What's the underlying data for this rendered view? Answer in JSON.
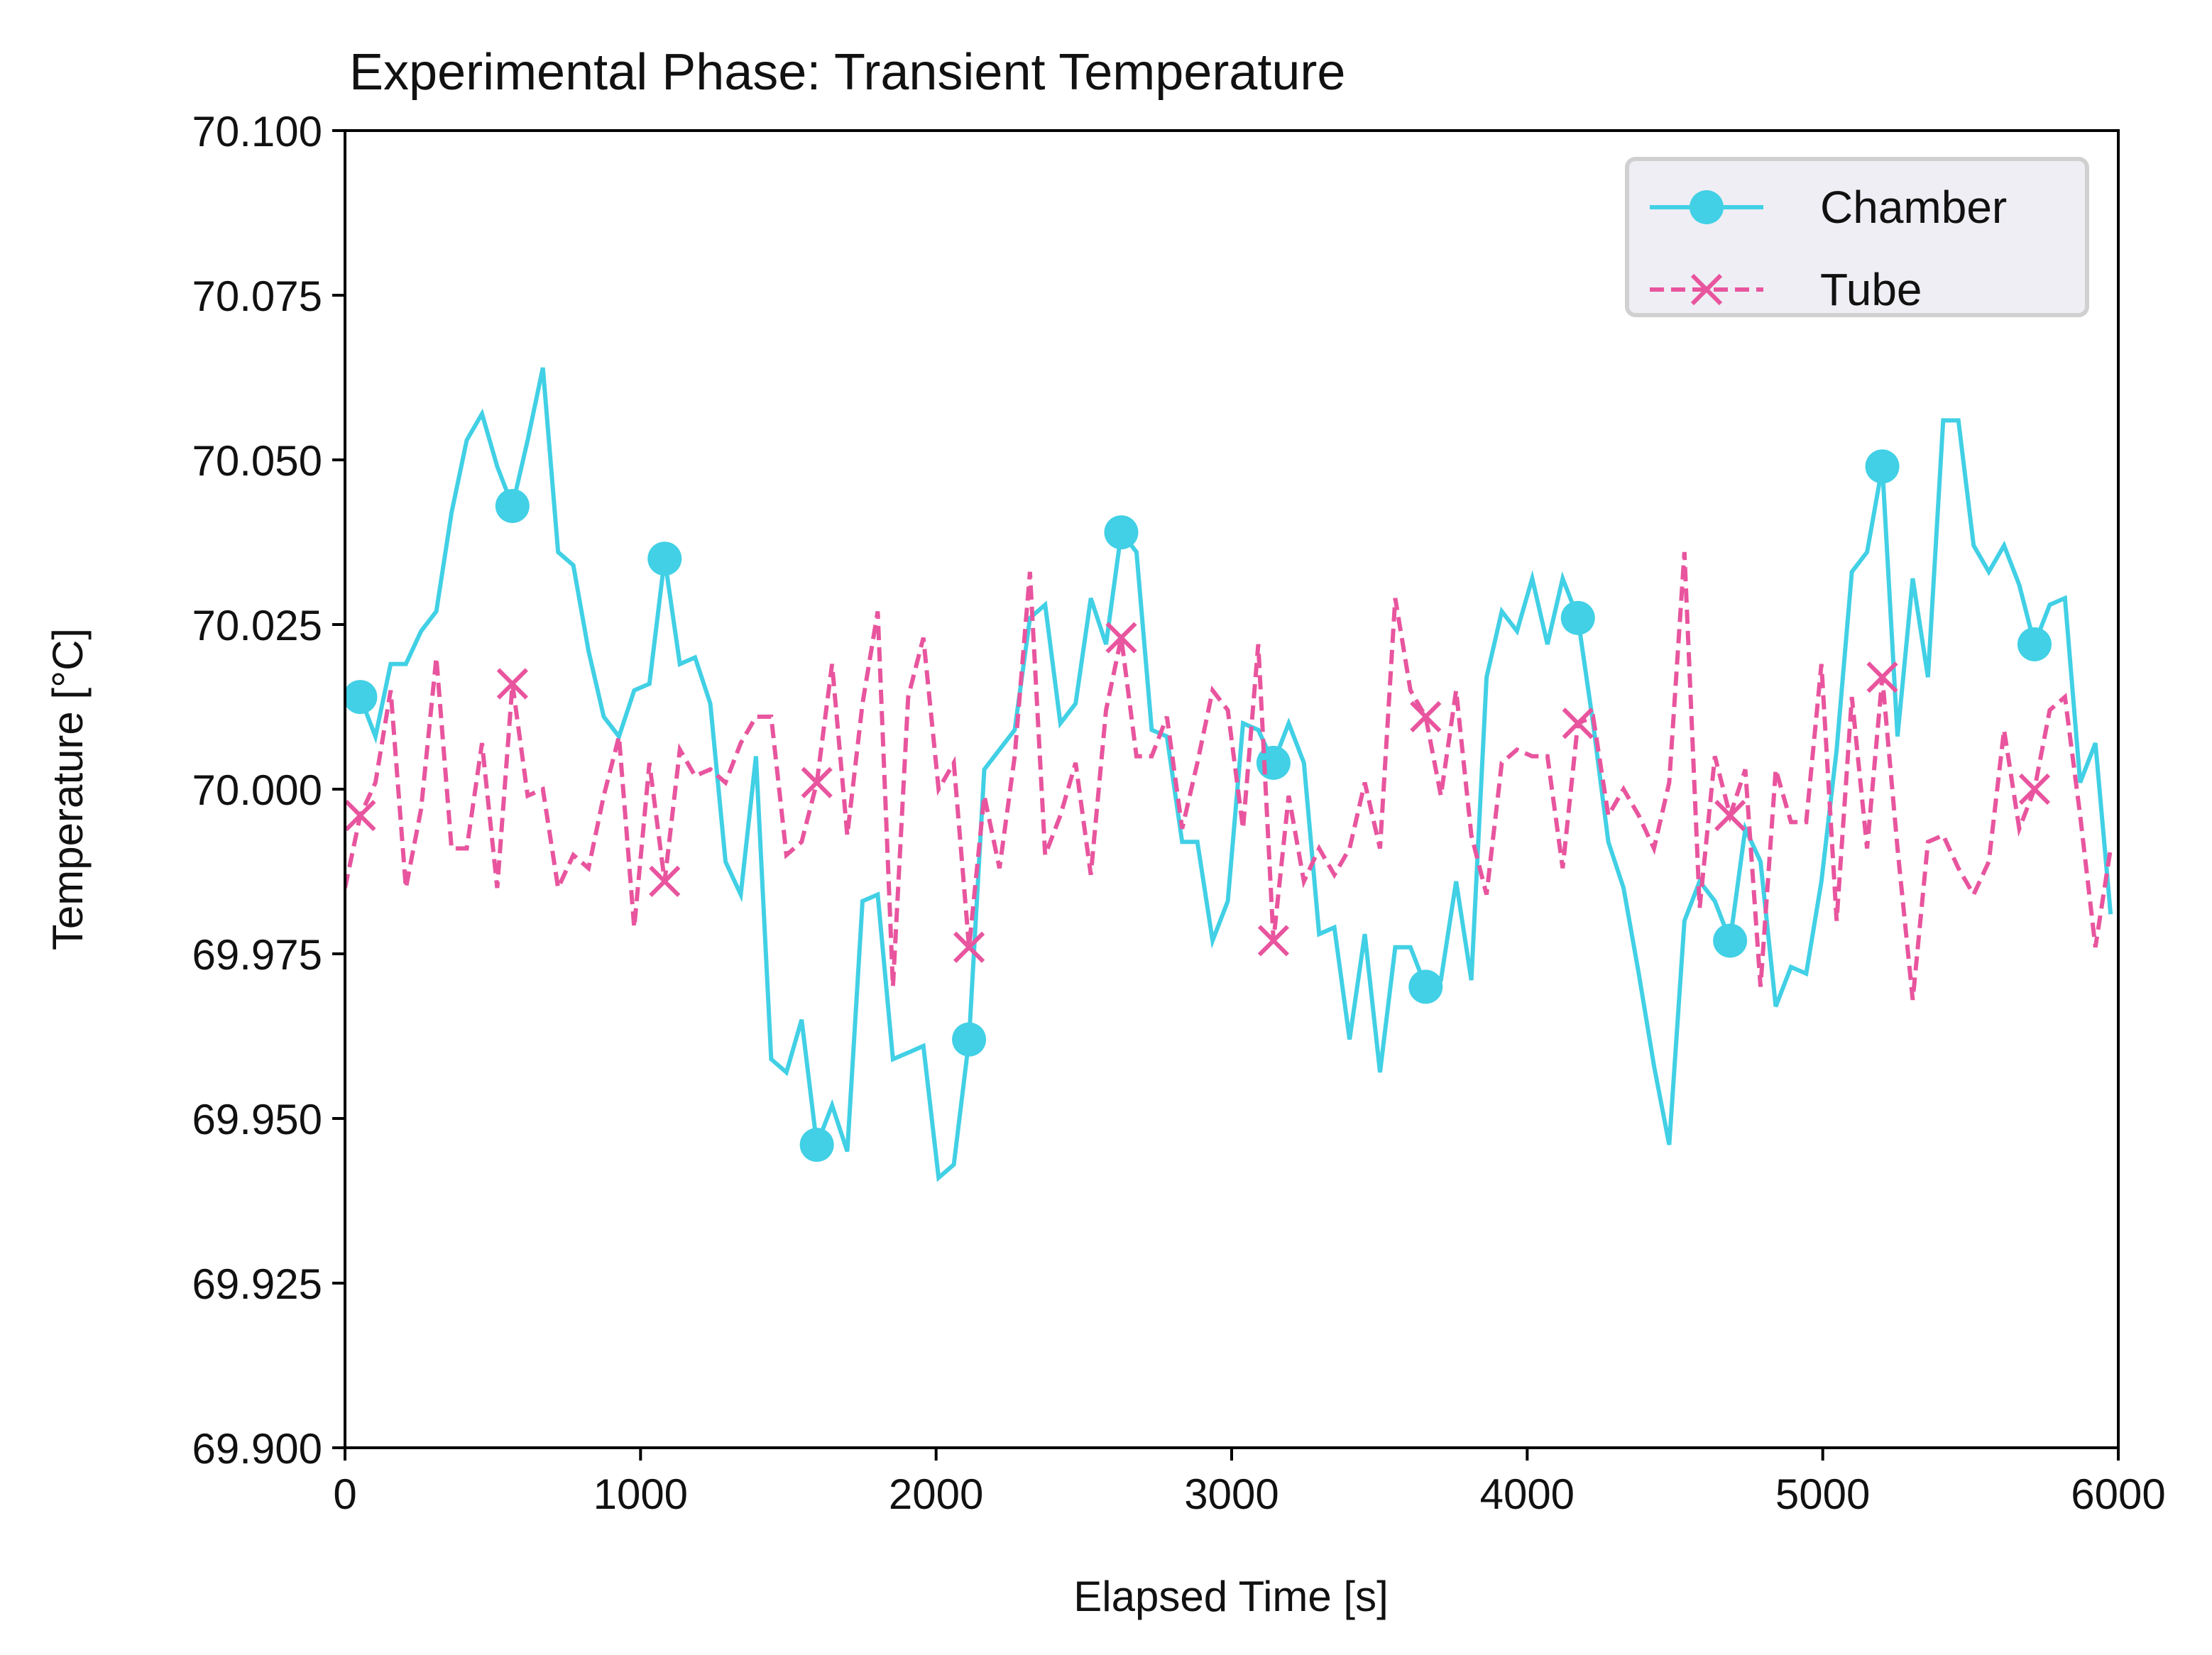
{
  "chart_data": {
    "type": "line",
    "title": "Experimental Phase: Transient Temperature",
    "xlabel": "Elapsed Time [s]",
    "ylabel": "Temperature [°C]",
    "x": [
      0,
      51.5,
      103,
      154.5,
      206,
      257.5,
      309,
      360.5,
      412,
      463.5,
      515,
      566.5,
      618,
      669.5,
      721,
      772.5,
      824,
      875.5,
      927,
      978.5,
      1030,
      1081.5,
      1133,
      1184.5,
      1236,
      1287.5,
      1339,
      1390.5,
      1442,
      1493.5,
      1545,
      1596.5,
      1648,
      1699.5,
      1751,
      1802.5,
      1854,
      1905.5,
      1957,
      2008.5,
      2060,
      2111.5,
      2163,
      2214.5,
      2266,
      2317.5,
      2369,
      2420.5,
      2472,
      2523.5,
      2575,
      2626.5,
      2678,
      2729.5,
      2781,
      2832.5,
      2884,
      2935.5,
      2987,
      3038.5,
      3090,
      3141.5,
      3193,
      3244.5,
      3296,
      3347.5,
      3399,
      3450.5,
      3502,
      3553.5,
      3605,
      3656.5,
      3708,
      3759.5,
      3811,
      3862.5,
      3914,
      3965.5,
      4017,
      4068.5,
      4120,
      4171.5,
      4223,
      4274.5,
      4326,
      4377.5,
      4429,
      4480.5,
      4532,
      4583.5,
      4635,
      4686.5,
      4738,
      4789.5,
      4841,
      4892.5,
      4944,
      4995.5,
      5047,
      5098.5,
      5150,
      5201.5,
      5253,
      5304.5,
      5356,
      5407.5,
      5459,
      5510.5,
      5562,
      5613.5,
      5665,
      5716.5,
      5768,
      5819.5,
      5871,
      5922.5,
      5974
    ],
    "series": [
      {
        "name": "Chamber",
        "color": "#41d0e5",
        "linestyle": "solid",
        "marker": "circle",
        "markevery": [
          1,
          10
        ],
        "values": [
          70.014,
          70.014,
          70.008,
          70.019,
          70.019,
          70.024,
          70.027,
          70.042,
          70.053,
          70.057,
          70.049,
          70.043,
          70.053,
          70.064,
          70.036,
          70.034,
          70.021,
          70.011,
          70.008,
          70.015,
          70.016,
          70.035,
          70.019,
          70.02,
          70.013,
          69.989,
          69.984,
          70.005,
          69.959,
          69.957,
          69.965,
          69.946,
          69.952,
          69.945,
          69.983,
          69.984,
          69.959,
          69.96,
          69.961,
          69.941,
          69.943,
          69.962,
          70.003,
          70.006,
          70.009,
          70.026,
          70.028,
          70.01,
          70.013,
          70.029,
          70.022,
          70.039,
          70.036,
          70.009,
          70.008,
          69.992,
          69.992,
          69.977,
          69.983,
          70.01,
          70.009,
          70.004,
          70.01,
          70.004,
          69.978,
          69.979,
          69.962,
          69.978,
          69.957,
          69.976,
          69.976,
          69.97,
          69.971,
          69.986,
          69.971,
          70.017,
          70.027,
          70.024,
          70.032,
          70.022,
          70.032,
          70.026,
          70.01,
          69.992,
          69.985,
          69.972,
          69.958,
          69.946,
          69.98,
          69.986,
          69.983,
          69.977,
          69.994,
          69.989,
          69.967,
          69.973,
          69.972,
          69.986,
          70.006,
          70.033,
          70.036,
          70.049,
          70.008,
          70.032,
          70.017,
          70.056,
          70.056,
          70.037,
          70.033,
          70.037,
          70.031,
          70.022,
          70.028,
          70.029,
          70.001,
          70.007,
          69.981
        ]
      },
      {
        "name": "Tube",
        "color": "#e8559e",
        "linestyle": "dashed",
        "marker": "x",
        "markevery": [
          1,
          10
        ],
        "values": [
          69.985,
          69.996,
          70.001,
          70.015,
          69.985,
          69.997,
          70.02,
          69.991,
          69.991,
          70.007,
          69.985,
          70.016,
          69.999,
          70.0,
          69.985,
          69.99,
          69.988,
          69.999,
          70.008,
          69.979,
          70.004,
          69.986,
          70.006,
          70.002,
          70.003,
          70.001,
          70.007,
          70.011,
          70.011,
          69.99,
          69.992,
          70.001,
          70.019,
          69.993,
          70.013,
          70.027,
          69.97,
          70.014,
          70.023,
          70.0,
          70.004,
          69.976,
          69.999,
          69.988,
          70.005,
          70.033,
          69.99,
          69.996,
          70.004,
          69.987,
          70.012,
          70.023,
          70.005,
          70.005,
          70.011,
          69.994,
          70.004,
          70.015,
          70.012,
          69.994,
          70.022,
          69.977,
          69.999,
          69.986,
          69.991,
          69.987,
          69.991,
          70.001,
          69.991,
          70.029,
          70.015,
          70.011,
          69.999,
          70.015,
          69.993,
          69.984,
          70.004,
          70.006,
          70.005,
          70.005,
          69.988,
          70.01,
          70.011,
          69.996,
          70.0,
          69.996,
          69.991,
          70.001,
          70.036,
          69.982,
          70.005,
          69.996,
          70.003,
          69.97,
          70.003,
          69.995,
          69.995,
          70.019,
          69.98,
          70.014,
          69.991,
          70.017,
          69.991,
          69.968,
          69.992,
          69.993,
          69.988,
          69.984,
          69.989,
          70.009,
          69.994,
          70.0,
          70.012,
          70.014,
          69.996,
          69.976,
          69.991
        ]
      }
    ],
    "xlim": [
      0,
      6000
    ],
    "xticks": [
      0,
      1000,
      2000,
      3000,
      4000,
      5000,
      6000
    ],
    "ylim": [
      69.9,
      70.1
    ],
    "yticks": [
      {
        "value": 69.9,
        "label": "69.900"
      },
      {
        "value": 69.925,
        "label": "69.925"
      },
      {
        "value": 69.95,
        "label": "69.950"
      },
      {
        "value": 69.975,
        "label": "69.975"
      },
      {
        "value": 70.0,
        "label": "70.000"
      },
      {
        "value": 70.025,
        "label": "70.025"
      },
      {
        "value": 70.05,
        "label": "70.050"
      },
      {
        "value": 70.075,
        "label": "70.075"
      },
      {
        "value": 70.1,
        "label": "70.100"
      }
    ],
    "grid": false,
    "legend": "upper right"
  }
}
